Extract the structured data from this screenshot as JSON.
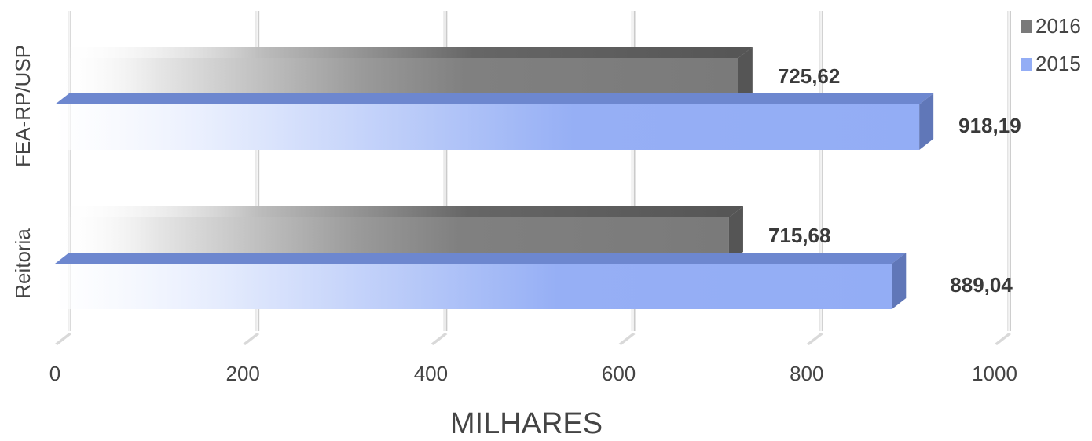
{
  "chart_data": {
    "type": "bar",
    "orientation": "horizontal",
    "style": "3d",
    "categories": [
      "FEA-RP/USP",
      "Reitoria"
    ],
    "series": [
      {
        "name": "2016",
        "values": [
          725.62,
          715.68
        ],
        "labels": [
          "725,62",
          "715,68"
        ],
        "color": "#7a7a7a"
      },
      {
        "name": "2015",
        "values": [
          918.19,
          889.04
        ],
        "labels": [
          "918,19",
          "889,04"
        ],
        "color": "#93adf5"
      }
    ],
    "xlim": [
      0,
      1000
    ],
    "xticks": [
      0,
      200,
      400,
      600,
      800,
      1000
    ],
    "xtick_labels": [
      "0",
      "200",
      "400",
      "600",
      "800",
      "1000"
    ],
    "xlabel": "MILHARES",
    "ylabel": "",
    "title": "",
    "grid": true,
    "legend": "top-right"
  }
}
